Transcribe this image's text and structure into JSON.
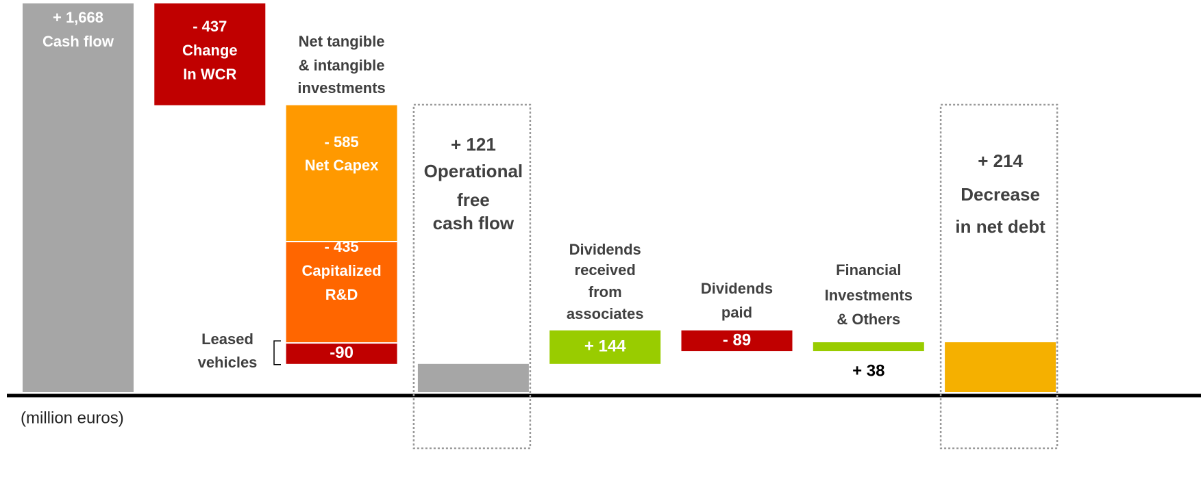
{
  "chart_data": {
    "type": "waterfall",
    "note": "(million euros)",
    "categories": [
      "Cash flow",
      "Change\nIn WCR",
      "Net Capex",
      "Capitalized\nR&D",
      "Leased\nvehicles",
      "Operational\nfree\ncash flow",
      "Dividends\nreceived\nfrom\nassociates",
      "Dividends\npaid",
      "Financial\nInvestments\n& Others",
      "Decrease\nin net debt"
    ],
    "values": [
      1668,
      -437,
      -585,
      -435,
      -90,
      121,
      144,
      -89,
      38,
      214
    ],
    "value_labels": [
      "+ 1,668",
      "- 437",
      "- 585",
      "- 435",
      "-90",
      "+ 121",
      "+ 144",
      "- 89",
      "+ 38",
      "+ 214"
    ],
    "totals": [
      false,
      false,
      false,
      false,
      false,
      true,
      false,
      false,
      false,
      true
    ],
    "colors": [
      "#a6a6a6",
      "#c00000",
      "#ff9900",
      "#ff6600",
      "#c00000",
      "#a6a6a6",
      "#99cc00",
      "#c00000",
      "#99cc00",
      "#f5b000"
    ],
    "group": {
      "label": "Net tangible\n& intangible\ninvestments",
      "members": [
        2,
        3,
        4
      ]
    }
  }
}
